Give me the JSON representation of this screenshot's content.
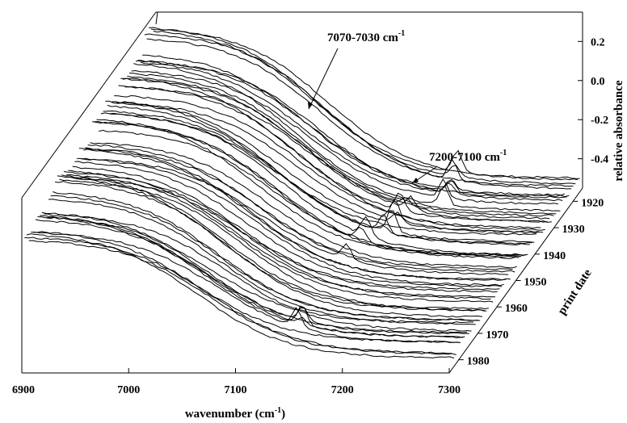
{
  "chart_data": {
    "type": "line",
    "view": "3d-waterfall",
    "title": "",
    "x_axis": {
      "label": "wavenumber (cm",
      "label_sup": "-1",
      "label_close": ")",
      "range": [
        6900,
        7300
      ],
      "ticks": [
        "6900",
        "7000",
        "7100",
        "7200",
        "7300"
      ]
    },
    "z_axis": {
      "label": "relative absorbance",
      "range": [
        -0.55,
        0.35
      ],
      "ticks": [
        "0.2",
        "0.0",
        "-0.2",
        "-0.4"
      ]
    },
    "depth_axis": {
      "label": "print date",
      "range": [
        1915,
        1985
      ],
      "ticks": [
        "1920",
        "1930",
        "1940",
        "1950",
        "1960",
        "1970",
        "1980"
      ]
    },
    "annotations": [
      {
        "text": "7070-7030 cm",
        "sup": "-1"
      },
      {
        "text": "7200-7100 cm",
        "sup": "-1"
      }
    ],
    "series_count": 60,
    "grid": false,
    "legend": "none"
  }
}
